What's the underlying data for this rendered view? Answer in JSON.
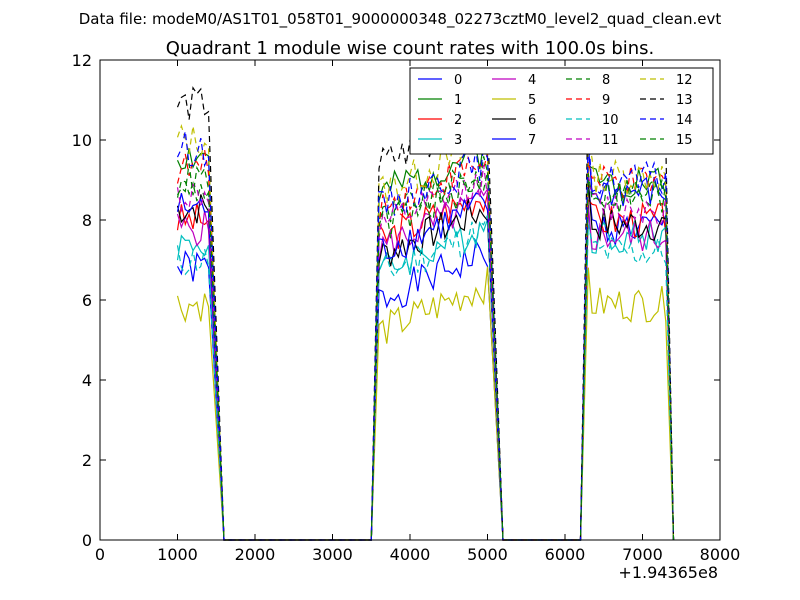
{
  "suptitle": "Data file: modeM0/AS1T01_058T01_9000000348_02273cztM0_level2_quad_clean.evt",
  "chart_data": {
    "type": "line",
    "title": "Quadrant 1 module wise count rates with 100.0s bins.",
    "xlabel": "",
    "ylabel": "",
    "x_offset_label": "+1.94365e8",
    "xlim": [
      0,
      8000
    ],
    "ylim": [
      0,
      12
    ],
    "x_ticks": [
      "0",
      "1000",
      "2000",
      "3000",
      "4000",
      "5000",
      "6000",
      "7000",
      "8000"
    ],
    "y_ticks": [
      "0",
      "2",
      "4",
      "6",
      "8",
      "10",
      "12"
    ],
    "legend_position": "top-right",
    "segments": [
      {
        "x_start": 1000,
        "x_end": 1400,
        "drop_to": 1600,
        "gap_end": 3500
      },
      {
        "x_start": 3600,
        "x_end": 5000,
        "drop_to": 5200,
        "gap_end": 6200
      },
      {
        "x_start": 6300,
        "x_end": 7300,
        "drop_to": 7400
      }
    ],
    "series": [
      {
        "name": "0",
        "color": "#0000ff",
        "style": "solid",
        "levels": [
          6.8,
          6.3,
          7.8
        ]
      },
      {
        "name": "1",
        "color": "#008000",
        "style": "solid",
        "levels": [
          9.6,
          8.9,
          9.0
        ]
      },
      {
        "name": "2",
        "color": "#ff0000",
        "style": "solid",
        "levels": [
          8.0,
          7.8,
          8.0
        ]
      },
      {
        "name": "3",
        "color": "#00bfbf",
        "style": "solid",
        "levels": [
          7.4,
          7.0,
          7.6
        ]
      },
      {
        "name": "4",
        "color": "#bf00bf",
        "style": "solid",
        "levels": [
          7.8,
          7.6,
          7.6
        ]
      },
      {
        "name": "5",
        "color": "#bfbf00",
        "style": "solid",
        "levels": [
          5.9,
          5.5,
          5.9
        ]
      },
      {
        "name": "6",
        "color": "#000000",
        "style": "solid",
        "levels": [
          8.3,
          7.4,
          7.9
        ]
      },
      {
        "name": "7",
        "color": "#0000ff",
        "style": "solid",
        "levels": [
          8.3,
          7.5,
          8.7
        ]
      },
      {
        "name": "8",
        "color": "#008000",
        "style": "dashed",
        "levels": [
          8.8,
          8.3,
          8.6
        ]
      },
      {
        "name": "9",
        "color": "#ff0000",
        "style": "dashed",
        "levels": [
          9.3,
          8.6,
          8.9
        ]
      },
      {
        "name": "10",
        "color": "#00bfbf",
        "style": "dashed",
        "levels": [
          7.0,
          6.9,
          7.2
        ]
      },
      {
        "name": "11",
        "color": "#bf00bf",
        "style": "dashed",
        "levels": [
          8.6,
          8.1,
          8.3
        ]
      },
      {
        "name": "12",
        "color": "#bfbf00",
        "style": "dashed",
        "levels": [
          10.0,
          9.0,
          9.1
        ]
      },
      {
        "name": "13",
        "color": "#000000",
        "style": "dashed",
        "levels": [
          10.9,
          9.7,
          10.3
        ]
      },
      {
        "name": "14",
        "color": "#0000ff",
        "style": "dashed",
        "levels": [
          9.8,
          8.6,
          9.0
        ]
      },
      {
        "name": "15",
        "color": "#008000",
        "style": "dashed",
        "levels": [
          9.0,
          8.1,
          8.7
        ]
      }
    ]
  }
}
